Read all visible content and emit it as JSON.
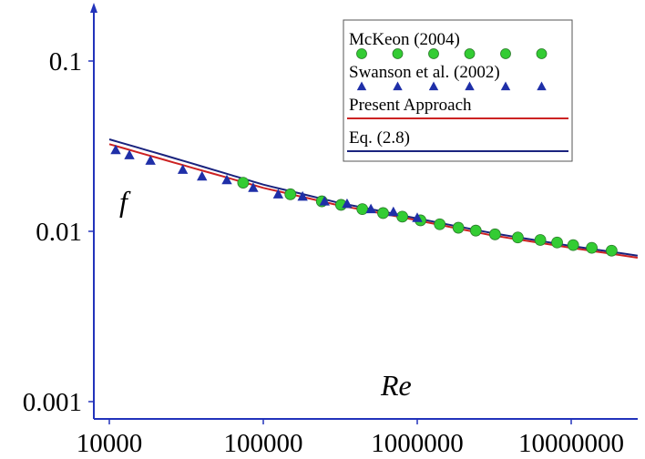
{
  "chart_data": {
    "type": "line",
    "xscale": "log",
    "yscale": "log",
    "xlim": [
      10000,
      30000000
    ],
    "ylim": [
      0.001,
      0.2
    ],
    "x_ticks": [
      "10000",
      "100000",
      "1000000",
      "10000000"
    ],
    "y_ticks": [
      "0.001",
      "0.01",
      "0.1"
    ],
    "xlabel": "Re",
    "ylabel": "f",
    "legend_position": "top-right",
    "series": [
      {
        "name": "McKeon (2004)",
        "kind": "markers",
        "marker": "circle",
        "color": "#33cc33",
        "points": [
          [
            74000,
            0.0193
          ],
          [
            150000,
            0.0165
          ],
          [
            240000,
            0.015
          ],
          [
            320000,
            0.0143
          ],
          [
            440000,
            0.0135
          ],
          [
            600000,
            0.0128
          ],
          [
            800000,
            0.0122
          ],
          [
            1050000,
            0.0116
          ],
          [
            1400000,
            0.011
          ],
          [
            1850000,
            0.0105
          ],
          [
            2400000,
            0.0101
          ],
          [
            3200000,
            0.0096
          ],
          [
            4500000,
            0.0092
          ],
          [
            6300000,
            0.0089
          ],
          [
            8100000,
            0.0086
          ],
          [
            10300000,
            0.0083
          ],
          [
            13600000,
            0.008
          ],
          [
            18300000,
            0.0077
          ]
        ]
      },
      {
        "name": "Swanson et al. (2002)",
        "kind": "markers",
        "marker": "triangle",
        "color": "#1f2fa8",
        "points": [
          [
            11000,
            0.03
          ],
          [
            13500,
            0.028
          ],
          [
            18500,
            0.026
          ],
          [
            30000,
            0.023
          ],
          [
            40000,
            0.021
          ],
          [
            58000,
            0.02
          ],
          [
            86000,
            0.018
          ],
          [
            125000,
            0.0165
          ],
          [
            180000,
            0.016
          ],
          [
            250000,
            0.015
          ],
          [
            350000,
            0.0145
          ],
          [
            500000,
            0.0135
          ],
          [
            700000,
            0.013
          ],
          [
            1000000,
            0.012
          ]
        ]
      },
      {
        "name": "Present Approach",
        "kind": "line",
        "color": "#cc2222",
        "points": [
          [
            10000,
            0.0325
          ],
          [
            30000,
            0.0245
          ],
          [
            100000,
            0.018
          ],
          [
            300000,
            0.0143
          ],
          [
            1000000,
            0.0116
          ],
          [
            3000000,
            0.0095
          ],
          [
            10000000,
            0.008
          ],
          [
            27000000,
            0.007
          ]
        ]
      },
      {
        "name": "Eq. (2.8)",
        "kind": "line",
        "color": "#1a237e",
        "points": [
          [
            10000,
            0.0347
          ],
          [
            30000,
            0.026
          ],
          [
            100000,
            0.0188
          ],
          [
            300000,
            0.0148
          ],
          [
            1000000,
            0.0119
          ],
          [
            3000000,
            0.0098
          ],
          [
            10000000,
            0.0082
          ],
          [
            27000000,
            0.0072
          ]
        ]
      }
    ]
  },
  "colors": {
    "axis": "#2233bb",
    "legend_border": "#555555"
  }
}
